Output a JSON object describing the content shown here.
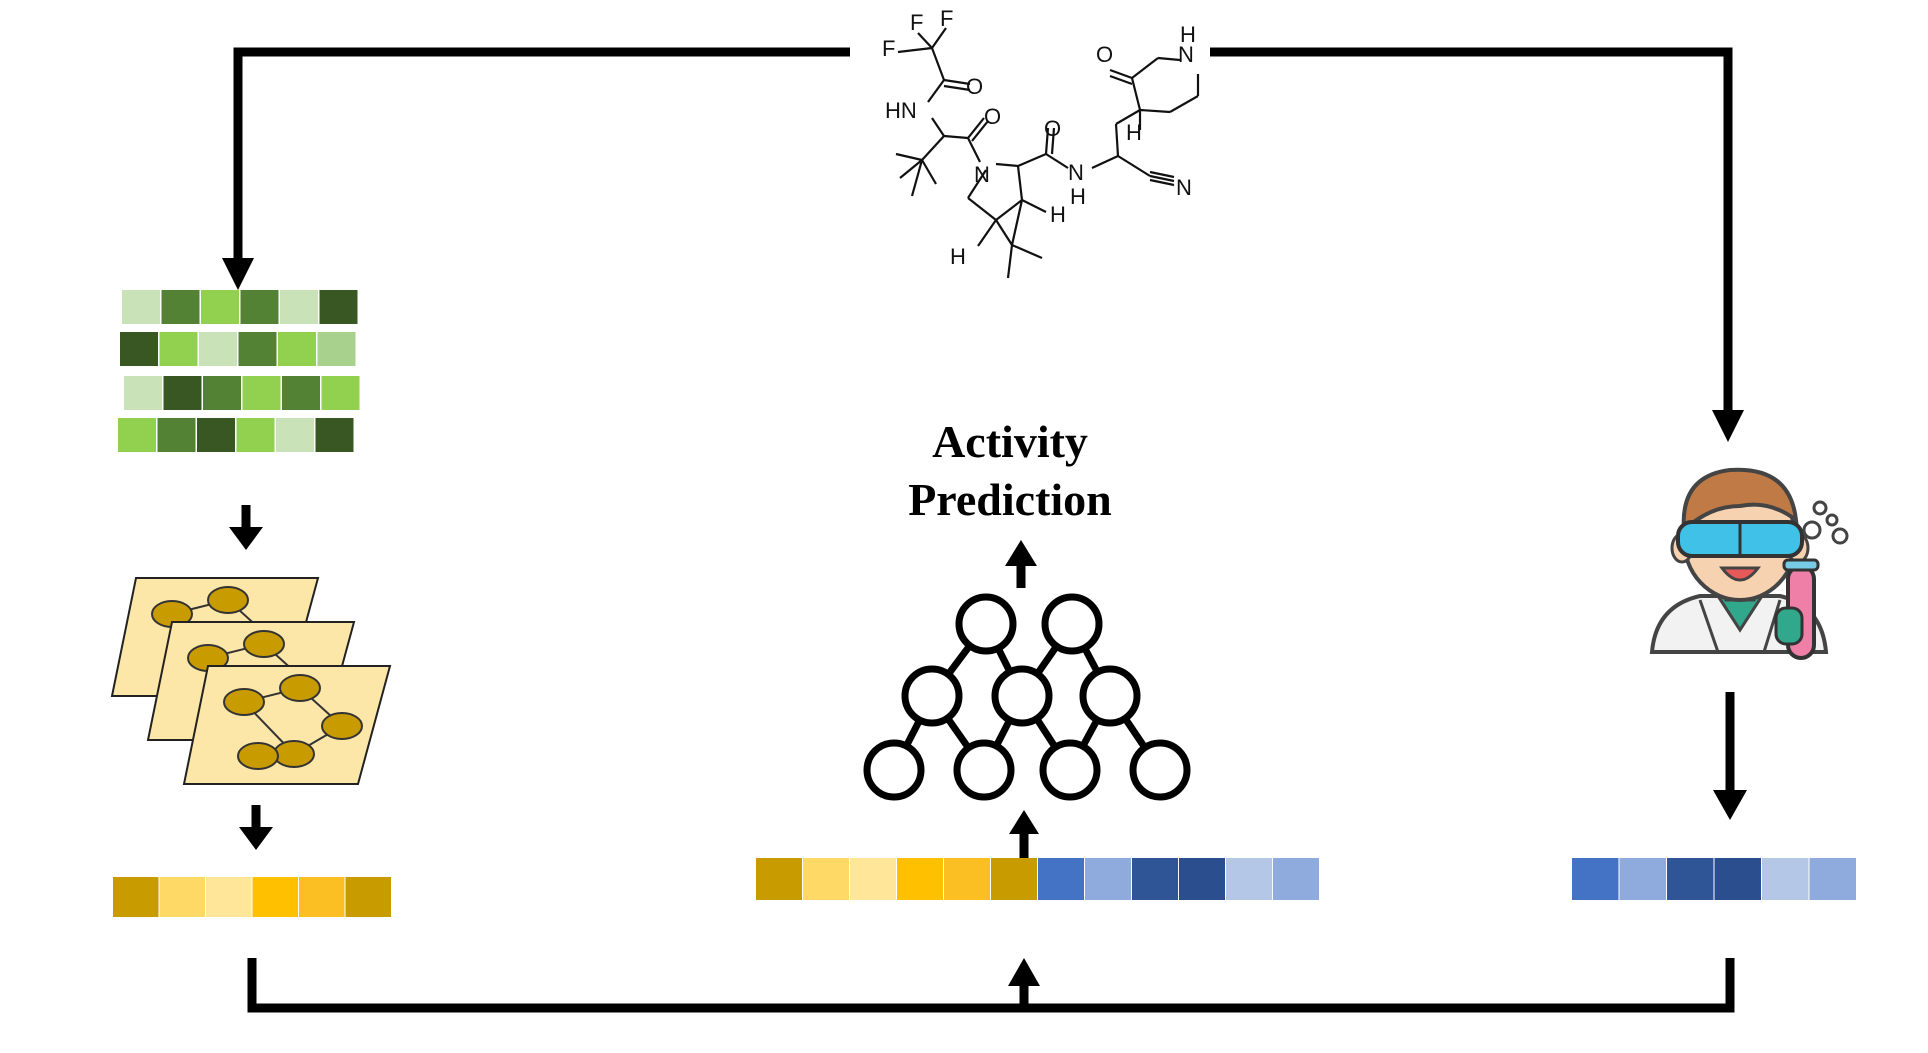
{
  "title": {
    "line1": "Activity",
    "line2": "Prediction"
  },
  "molecule": {
    "atoms": {
      "F1": "F",
      "F2": "F",
      "F3": "F",
      "O1": "O",
      "HN": "HN",
      "O2": "O",
      "N1": "N",
      "O3": "O",
      "NH": "N",
      "NH_H": "H",
      "N_nitrile": "N",
      "H1": "H",
      "H2": "H",
      "H3": "H",
      "O4": "O",
      "N_ring": "N",
      "N_ring_H": "H"
    }
  },
  "colors": {
    "line": "#000000",
    "green": [
      "#c9e2b8",
      "#548235",
      "#92d050",
      "#385723",
      "#a9d18e"
    ],
    "gold": [
      "#c89b00",
      "#ffd966",
      "#ffe699",
      "#ffc000",
      "#fbbf24"
    ],
    "blue": [
      "#4472c4",
      "#8faadc",
      "#2f5597",
      "#2b4e8e",
      "#b4c7e7"
    ],
    "graph_sheet": "#fde7a8",
    "graph_node": "#c89b00"
  },
  "matrices": {
    "fingerprint_rows": [
      [
        "#c9e2b8",
        "#548235",
        "#92d050",
        "#548235",
        "#c9e2b8",
        "#385723"
      ],
      [
        "#385723",
        "#92d050",
        "#c9e2b8",
        "#548235",
        "#92d050",
        "#a9d18e"
      ],
      [
        "#c9e2b8",
        "#385723",
        "#548235",
        "#92d050",
        "#548235",
        "#92d050"
      ],
      [
        "#92d050",
        "#548235",
        "#385723",
        "#92d050",
        "#c9e2b8",
        "#385723"
      ]
    ],
    "graph_embedding": [
      "#c89b00",
      "#ffd966",
      "#ffe699",
      "#ffc000",
      "#fbbf24",
      "#c89b00"
    ],
    "assay_embedding": [
      "#4472c4",
      "#8faadc",
      "#2f5597",
      "#2b4e8e",
      "#b4c7e7",
      "#8faadc"
    ],
    "combined_embedding": [
      "#c89b00",
      "#ffd966",
      "#ffe699",
      "#ffc000",
      "#fbbf24",
      "#c89b00",
      "#4472c4",
      "#8faadc",
      "#2f5597",
      "#2b4e8e",
      "#b4c7e7",
      "#8faadc"
    ]
  },
  "icons": {
    "scientist": "scientist-icon",
    "neural_network": "neural-network-icon",
    "graph_stack": "molecular-graph-icon"
  }
}
